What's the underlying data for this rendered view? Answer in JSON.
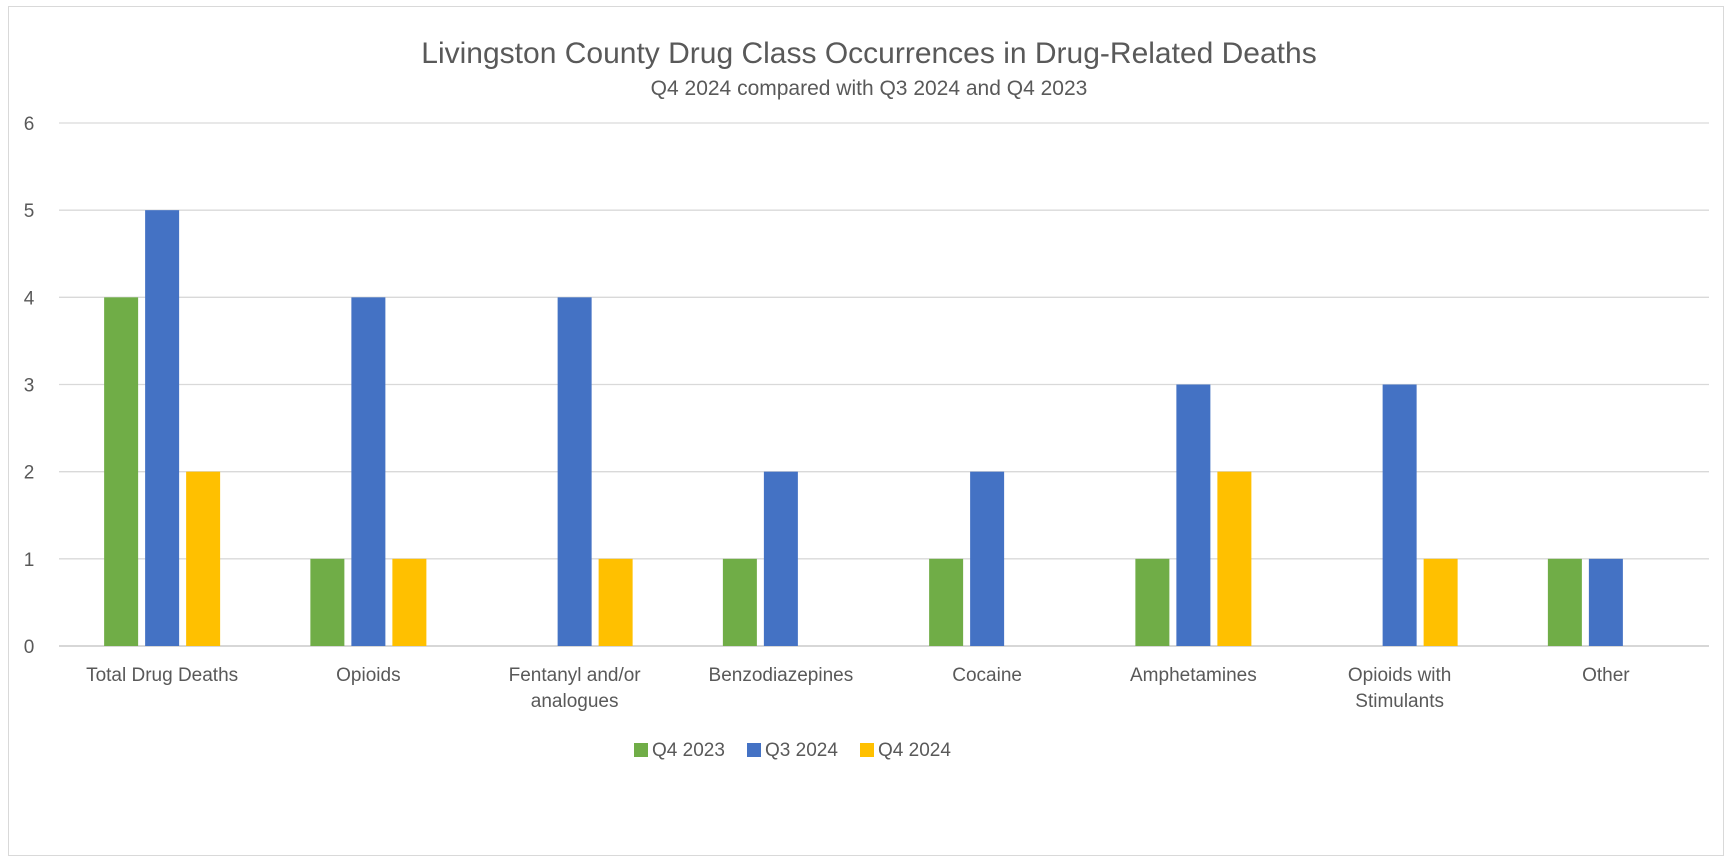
{
  "chart_data": {
    "type": "bar",
    "title": "Livingston County Drug Class Occurrences in Drug-Related Deaths",
    "subtitle": "Q4 2024 compared with Q3 2024 and Q4 2023",
    "categories": [
      [
        "Total Drug Deaths"
      ],
      [
        "Opioids"
      ],
      [
        "Fentanyl and/or",
        "analogues"
      ],
      [
        "Benzodiazepines"
      ],
      [
        "Cocaine"
      ],
      [
        "Amphetamines"
      ],
      [
        "Opioids with",
        "Stimulants"
      ],
      [
        "Other"
      ]
    ],
    "series": [
      {
        "name": "Q4 2023",
        "color": "#70ad47",
        "values": [
          4,
          1,
          0,
          1,
          1,
          1,
          0,
          1
        ]
      },
      {
        "name": "Q3 2024",
        "color": "#4472c4",
        "values": [
          5,
          4,
          4,
          2,
          2,
          3,
          3,
          1
        ]
      },
      {
        "name": "Q4 2024",
        "color": "#ffc000",
        "values": [
          2,
          1,
          1,
          0,
          0,
          2,
          1,
          0
        ]
      }
    ],
    "ylim": [
      0,
      6
    ],
    "yticks": [
      "0",
      "1",
      "2",
      "3",
      "4",
      "5",
      "6"
    ],
    "grid": true,
    "legend_position": "bottom"
  }
}
